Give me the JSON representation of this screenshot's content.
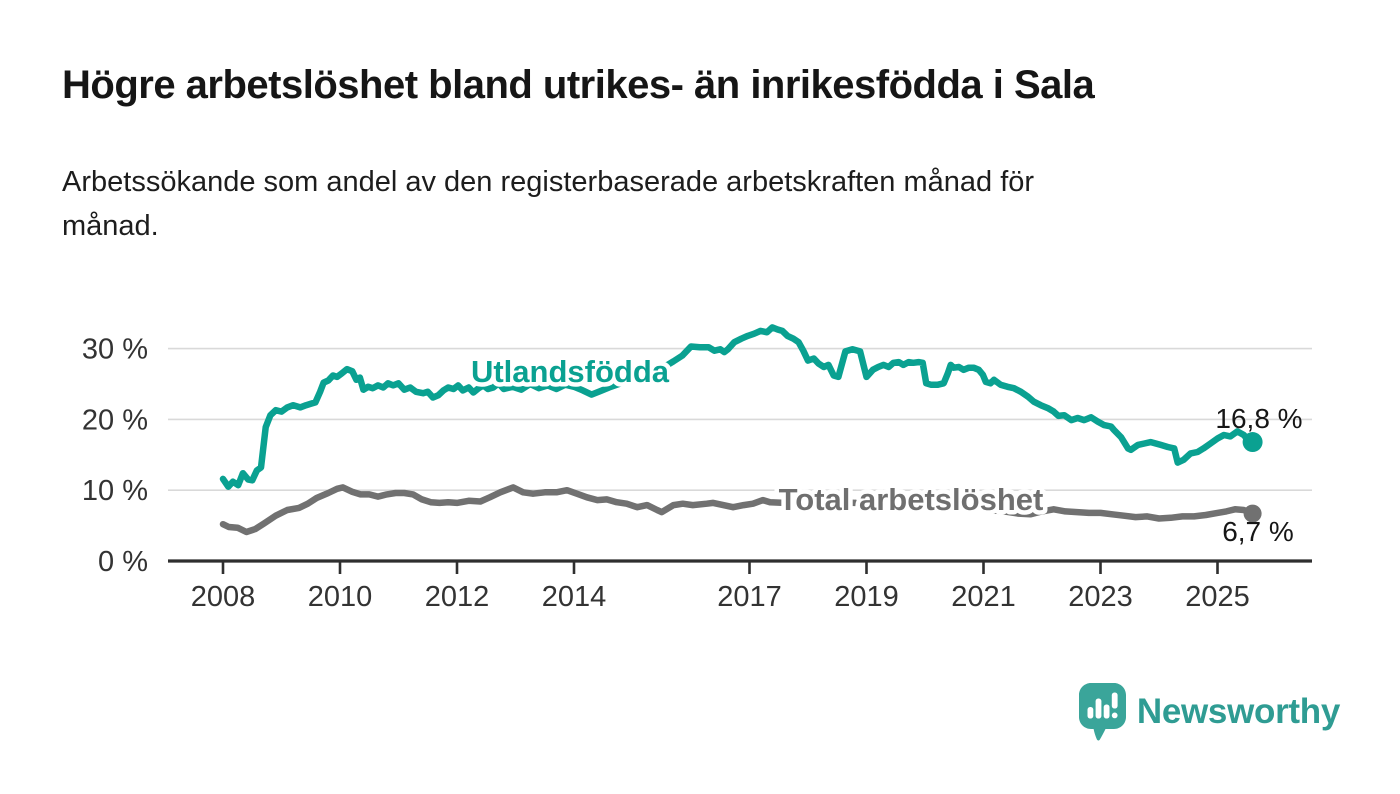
{
  "header": {
    "title": "Högre arbetslöshet bland utrikes- än inrikesfödda i Sala",
    "subtitle_line1": "Arbetssökande som andel av den registerbaserade arbetskraften månad för",
    "subtitle_line2": "månad."
  },
  "chart_data": {
    "type": "line",
    "title": "Högre arbetslöshet bland utrikes- än inrikesfödda i Sala",
    "subtitle": "Arbetssökande som andel av den registerbaserade arbetskraften månad för månad.",
    "unit": "%",
    "xlabel": "",
    "ylabel": "",
    "x_range": [
      2008,
      2025.6
    ],
    "ylim": [
      0,
      35
    ],
    "grid": "horizontal",
    "gridline_color": "#d9d9d9",
    "axis_color": "#2f2f2f",
    "yticks": [
      {
        "v": 0,
        "label": "0 %"
      },
      {
        "v": 10,
        "label": "10 %"
      },
      {
        "v": 20,
        "label": "20 %"
      },
      {
        "v": 30,
        "label": "30 %"
      }
    ],
    "xticks": [
      {
        "v": 2008,
        "label": "2008"
      },
      {
        "v": 2010,
        "label": "2010"
      },
      {
        "v": 2012,
        "label": "2012"
      },
      {
        "v": 2014,
        "label": "2014"
      },
      {
        "v": 2017,
        "label": "2017"
      },
      {
        "v": 2019,
        "label": "2019"
      },
      {
        "v": 2021,
        "label": "2021"
      },
      {
        "v": 2023,
        "label": "2023"
      },
      {
        "v": 2025,
        "label": "2025"
      }
    ],
    "series": [
      {
        "name": "Utlandsfödda",
        "color": "#0aa191",
        "end_label": "16,8 %",
        "end_value": 16.8,
        "dot_radius": 10,
        "x": [
          2008.0,
          2008.09,
          2008.17,
          2008.26,
          2008.34,
          2008.43,
          2008.5,
          2008.58,
          2008.65,
          2008.73,
          2008.81,
          2008.9,
          2009.0,
          2009.1,
          2009.2,
          2009.32,
          2009.42,
          2009.5,
          2009.58,
          2009.66,
          2009.72,
          2009.8,
          2009.88,
          2009.95,
          2010.03,
          2010.12,
          2010.21,
          2010.28,
          2010.34,
          2010.4,
          2010.48,
          2010.56,
          2010.65,
          2010.74,
          2010.82,
          2010.91,
          2011.0,
          2011.1,
          2011.2,
          2011.3,
          2011.42,
          2011.5,
          2011.59,
          2011.68,
          2011.77,
          2011.85,
          2011.94,
          2012.02,
          2012.1,
          2012.2,
          2012.28,
          2012.37,
          2012.45,
          2012.53,
          2012.62,
          2012.71,
          2012.8,
          2012.95,
          2013.1,
          2013.25,
          2013.4,
          2013.55,
          2013.7,
          2013.85,
          2014.0,
          2014.15,
          2014.3,
          2014.45,
          2014.6,
          2014.8,
          2015.0,
          2015.2,
          2015.4,
          2015.6,
          2015.7,
          2015.85,
          2016.0,
          2016.15,
          2016.3,
          2016.4,
          2016.5,
          2016.57,
          2016.63,
          2016.74,
          2016.86,
          2016.97,
          2017.08,
          2017.19,
          2017.3,
          2017.39,
          2017.48,
          2017.56,
          2017.65,
          2017.75,
          2017.84,
          2017.92,
          2018.0,
          2018.1,
          2018.18,
          2018.27,
          2018.35,
          2018.44,
          2018.52,
          2018.64,
          2018.76,
          2018.89,
          2019.0,
          2019.11,
          2019.2,
          2019.29,
          2019.38,
          2019.46,
          2019.55,
          2019.63,
          2019.72,
          2019.8,
          2019.89,
          2019.96,
          2020.02,
          2020.1,
          2020.22,
          2020.32,
          2020.39,
          2020.44,
          2020.49,
          2020.58,
          2020.66,
          2020.75,
          2020.83,
          2020.92,
          2020.99,
          2021.04,
          2021.12,
          2021.18,
          2021.29,
          2021.41,
          2021.52,
          2021.64,
          2021.76,
          2021.86,
          2021.98,
          2022.1,
          2022.2,
          2022.28,
          2022.38,
          2022.5,
          2022.61,
          2022.72,
          2022.84,
          2022.95,
          2023.06,
          2023.18,
          2023.23,
          2023.35,
          2023.47,
          2023.52,
          2023.64,
          2023.75,
          2023.86,
          2024.03,
          2024.15,
          2024.26,
          2024.32,
          2024.42,
          2024.54,
          2024.66,
          2024.76,
          2024.88,
          2025.0,
          2025.11,
          2025.22,
          2025.34,
          2025.45,
          2025.52,
          2025.6
        ],
        "values": [
          11.6,
          10.5,
          11.2,
          10.7,
          12.4,
          11.5,
          11.4,
          12.8,
          13.2,
          18.9,
          20.6,
          21.3,
          21.1,
          21.7,
          22.0,
          21.7,
          22.0,
          22.2,
          22.4,
          23.9,
          25.2,
          25.5,
          26.2,
          26.0,
          26.5,
          27.1,
          26.8,
          25.6,
          25.9,
          24.2,
          24.6,
          24.4,
          24.8,
          24.5,
          25.1,
          24.8,
          25.1,
          24.2,
          24.5,
          23.9,
          23.7,
          23.9,
          23.1,
          23.4,
          24.1,
          24.5,
          24.3,
          24.8,
          24.1,
          24.5,
          23.8,
          24.4,
          24.8,
          24.3,
          24.5,
          25.1,
          24.3,
          24.6,
          24.2,
          25.0,
          24.4,
          24.8,
          24.3,
          24.9,
          24.6,
          24.1,
          23.5,
          24.0,
          24.5,
          25.1,
          25.7,
          26.3,
          27.0,
          27.7,
          28.2,
          29.0,
          30.3,
          30.2,
          30.2,
          29.7,
          29.9,
          29.5,
          29.9,
          30.9,
          31.4,
          31.8,
          32.1,
          32.5,
          32.3,
          33.0,
          32.7,
          32.5,
          31.8,
          31.4,
          30.9,
          29.7,
          28.3,
          28.6,
          27.9,
          27.4,
          27.7,
          26.2,
          26.0,
          29.6,
          29.9,
          29.6,
          26.0,
          27.0,
          27.4,
          27.7,
          27.4,
          28.0,
          28.1,
          27.7,
          28.1,
          28.0,
          28.1,
          28.0,
          25.1,
          24.9,
          24.9,
          25.1,
          26.5,
          27.7,
          27.3,
          27.4,
          27.0,
          27.3,
          27.3,
          27.0,
          26.3,
          25.3,
          25.1,
          25.6,
          24.9,
          24.6,
          24.4,
          23.9,
          23.2,
          22.5,
          22.0,
          21.6,
          21.1,
          20.5,
          20.6,
          19.9,
          20.2,
          19.9,
          20.3,
          19.7,
          19.2,
          19.0,
          18.5,
          17.5,
          15.9,
          15.7,
          16.4,
          16.6,
          16.8,
          16.4,
          16.1,
          15.9,
          13.9,
          14.3,
          15.2,
          15.4,
          15.9,
          16.6,
          17.3,
          17.8,
          17.6,
          18.3,
          17.8,
          17.1,
          16.8
        ]
      },
      {
        "name": "Total arbetslöshet",
        "color": "#717171",
        "end_label": "6,7 %",
        "end_value": 6.7,
        "dot_radius": 9,
        "x": [
          2008.0,
          2008.1,
          2008.25,
          2008.4,
          2008.55,
          2008.7,
          2008.9,
          2009.1,
          2009.3,
          2009.45,
          2009.6,
          2009.8,
          2009.95,
          2010.05,
          2010.2,
          2010.35,
          2010.5,
          2010.65,
          2010.8,
          2010.95,
          2011.1,
          2011.25,
          2011.4,
          2011.55,
          2011.7,
          2011.85,
          2012.0,
          2012.2,
          2012.4,
          2012.56,
          2012.74,
          2012.96,
          2013.13,
          2013.3,
          2013.5,
          2013.7,
          2013.88,
          2014.05,
          2014.22,
          2014.4,
          2014.56,
          2014.73,
          2014.9,
          2015.08,
          2015.25,
          2015.42,
          2015.5,
          2015.7,
          2015.86,
          2016.03,
          2016.27,
          2016.38,
          2016.55,
          2016.72,
          2016.9,
          2017.06,
          2017.23,
          2017.35,
          2017.6,
          2017.9,
          2018.2,
          2018.5,
          2018.8,
          2019.1,
          2019.4,
          2019.7,
          2019.95,
          2020.2,
          2020.45,
          2020.6,
          2020.85,
          2021.1,
          2021.35,
          2021.6,
          2021.8,
          2022.0,
          2022.2,
          2022.4,
          2022.6,
          2022.8,
          2023.0,
          2023.2,
          2023.4,
          2023.6,
          2023.8,
          2024.0,
          2024.2,
          2024.4,
          2024.6,
          2024.8,
          2025.0,
          2025.15,
          2025.3,
          2025.45,
          2025.6
        ],
        "values": [
          5.2,
          4.8,
          4.7,
          4.1,
          4.5,
          5.3,
          6.4,
          7.2,
          7.5,
          8.1,
          8.9,
          9.6,
          10.2,
          10.4,
          9.8,
          9.4,
          9.4,
          9.1,
          9.4,
          9.6,
          9.6,
          9.4,
          8.7,
          8.3,
          8.2,
          8.3,
          8.2,
          8.5,
          8.4,
          9.0,
          9.7,
          10.4,
          9.7,
          9.5,
          9.7,
          9.7,
          10.0,
          9.5,
          9.0,
          8.6,
          8.7,
          8.3,
          8.1,
          7.6,
          7.9,
          7.2,
          6.9,
          7.9,
          8.1,
          7.9,
          8.1,
          8.2,
          7.9,
          7.6,
          7.9,
          8.1,
          8.6,
          8.3,
          8.2,
          8.0,
          8.1,
          8.3,
          8.2,
          8.3,
          8.2,
          8.1,
          8.3,
          8.6,
          8.4,
          8.1,
          7.6,
          7.2,
          7.0,
          6.7,
          6.6,
          7.0,
          7.3,
          7.0,
          6.9,
          6.8,
          6.8,
          6.6,
          6.4,
          6.2,
          6.3,
          6.0,
          6.1,
          6.3,
          6.3,
          6.5,
          6.8,
          7.0,
          7.3,
          7.2,
          6.7
        ]
      }
    ]
  },
  "logo": {
    "brand": "Newsworthy",
    "icon": "newsworthy-speech-bubble-bars-icon",
    "color": "#2f9c93"
  }
}
